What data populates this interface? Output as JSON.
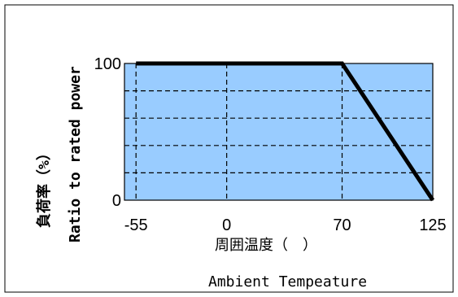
{
  "chart_data": {
    "type": "line",
    "title": "",
    "xlabel": "周囲温度（　）",
    "xlabel_en": "Ambient Tempeature",
    "ylabel": "負荷率（%）",
    "ylabel_en": "Ratio to rated power",
    "xlim": [
      -55,
      125
    ],
    "ylim": [
      0,
      100
    ],
    "x_ticks": [
      -55,
      0,
      70,
      125
    ],
    "x_tick_labels": [
      "-55",
      "0",
      "70",
      "125"
    ],
    "y_ticks": [
      0,
      100
    ],
    "y_tick_labels": [
      "0",
      "100"
    ],
    "grid": true,
    "x_grid": [
      0,
      70
    ],
    "y_grid": [
      20,
      40,
      60,
      80
    ],
    "background_color": "#99ccff",
    "line_color": "#000000",
    "series": [
      {
        "x": [
          -55,
          70,
          125
        ],
        "y": [
          100,
          100,
          0
        ]
      }
    ]
  }
}
